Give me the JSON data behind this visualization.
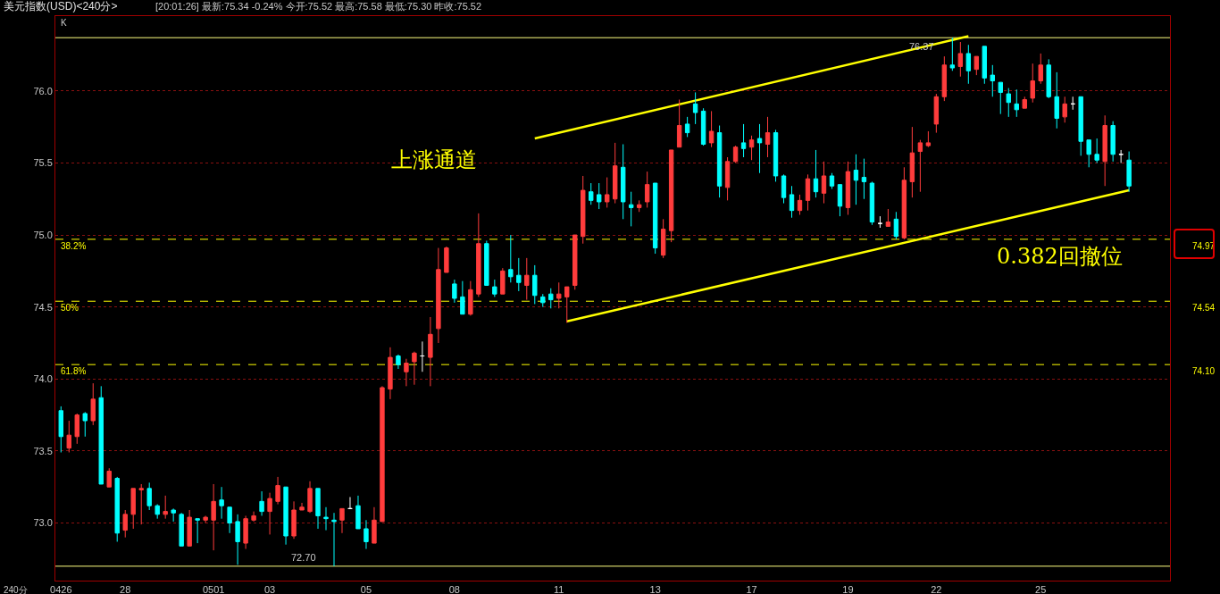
{
  "chart_data": {
    "type": "candlestick",
    "title": "美元指数(USD)<240分>",
    "subtitle": "[20:01:26] 最新:75.34 -0.24% 今开:75.52 最高:75.58 最低:75.30 昨收:75.52",
    "categories": [
      "0426",
      null,
      null,
      null,
      null,
      null,
      null,
      null,
      "28",
      null,
      null,
      null,
      null,
      null,
      null,
      null,
      null,
      null,
      null,
      "0501",
      null,
      null,
      null,
      null,
      null,
      null,
      "03",
      null,
      null,
      null,
      null,
      null,
      null,
      null,
      null,
      null,
      null,
      null,
      "05",
      null,
      null,
      null,
      null,
      null,
      null,
      null,
      null,
      null,
      null,
      "08",
      null,
      null,
      null,
      null,
      null,
      null,
      null,
      null,
      null,
      null,
      null,
      null,
      "11",
      null,
      null,
      null,
      null,
      null,
      null,
      null,
      null,
      null,
      null,
      null,
      "13",
      null,
      null,
      null,
      null,
      null,
      null,
      null,
      null,
      null,
      null,
      null,
      "17",
      null,
      null,
      null,
      null,
      null,
      null,
      null,
      null,
      null,
      null,
      null,
      "19",
      null,
      null,
      null,
      null,
      null,
      null,
      null,
      null,
      null,
      null,
      "22",
      null,
      null,
      null,
      null,
      null,
      null,
      null,
      null,
      null,
      null,
      null,
      null,
      "25",
      null,
      null,
      null,
      null,
      null,
      null,
      null,
      null,
      null,
      null,
      null
    ],
    "ohlc": [
      [
        73.78,
        73.81,
        73.49,
        73.6
      ],
      [
        73.52,
        73.71,
        73.49,
        73.61
      ],
      [
        73.6,
        73.76,
        73.55,
        73.75
      ],
      [
        73.76,
        73.77,
        73.6,
        73.71
      ],
      [
        73.71,
        73.97,
        73.68,
        73.86
      ],
      [
        73.87,
        73.95,
        73.27,
        73.27
      ],
      [
        73.25,
        73.38,
        73.25,
        73.36
      ],
      [
        73.31,
        73.32,
        72.87,
        72.93
      ],
      [
        72.95,
        73.09,
        72.9,
        73.06
      ],
      [
        73.06,
        73.24,
        72.96,
        73.24
      ],
      [
        73.23,
        73.27,
        72.99,
        73.24
      ],
      [
        73.24,
        73.28,
        73.09,
        73.12
      ],
      [
        73.12,
        73.13,
        73.03,
        73.06
      ],
      [
        73.06,
        73.19,
        73.03,
        73.08
      ],
      [
        73.09,
        73.1,
        73.01,
        73.07
      ],
      [
        73.06,
        73.07,
        72.84,
        72.84
      ],
      [
        72.84,
        73.09,
        72.84,
        73.04
      ],
      [
        73.03,
        73.03,
        72.86,
        73.02
      ],
      [
        73.02,
        73.05,
        73.0,
        73.04
      ],
      [
        73.02,
        73.27,
        72.81,
        73.15
      ],
      [
        73.16,
        73.25,
        73.03,
        73.12
      ],
      [
        73.11,
        73.11,
        72.93,
        73.0
      ],
      [
        73.01,
        73.06,
        72.71,
        72.87
      ],
      [
        72.86,
        73.05,
        72.82,
        73.03
      ],
      [
        73.02,
        73.08,
        73.01,
        73.05
      ],
      [
        73.15,
        73.22,
        73.05,
        73.08
      ],
      [
        73.08,
        73.21,
        72.92,
        73.17
      ],
      [
        73.15,
        73.32,
        73.13,
        73.26
      ],
      [
        73.25,
        73.25,
        72.85,
        72.91
      ],
      [
        72.91,
        73.15,
        72.89,
        73.09
      ],
      [
        73.09,
        73.14,
        73.09,
        73.11
      ],
      [
        73.08,
        73.29,
        73.07,
        73.24
      ],
      [
        73.24,
        73.24,
        72.96,
        73.05
      ],
      [
        73.04,
        73.11,
        72.95,
        73.03
      ],
      [
        73.02,
        73.07,
        72.7,
        73.01
      ],
      [
        73.02,
        73.1,
        72.93,
        73.1
      ],
      [
        73.1,
        73.18,
        73.1,
        73.1
      ],
      [
        73.12,
        73.19,
        72.96,
        72.96
      ],
      [
        72.96,
        73.02,
        72.82,
        72.87
      ],
      [
        72.86,
        73.11,
        72.86,
        73.02
      ],
      [
        73.01,
        73.95,
        73.01,
        73.94
      ],
      [
        73.93,
        74.22,
        73.86,
        74.15
      ],
      [
        74.16,
        74.17,
        74.07,
        74.1
      ],
      [
        74.05,
        74.14,
        73.95,
        74.11
      ],
      [
        74.12,
        74.19,
        73.96,
        74.18
      ],
      [
        74.16,
        74.26,
        74.05,
        74.16
      ],
      [
        74.15,
        74.43,
        73.95,
        74.31
      ],
      [
        74.35,
        74.91,
        74.25,
        74.76
      ],
      [
        74.74,
        74.92,
        74.74,
        74.91
      ],
      [
        74.66,
        74.69,
        74.53,
        74.56
      ],
      [
        74.57,
        74.68,
        74.45,
        74.45
      ],
      [
        74.45,
        74.68,
        74.44,
        74.62
      ],
      [
        74.59,
        75.15,
        74.57,
        74.94
      ],
      [
        74.94,
        74.96,
        74.65,
        74.65
      ],
      [
        74.64,
        74.69,
        74.57,
        74.59
      ],
      [
        74.59,
        74.77,
        74.59,
        74.75
      ],
      [
        74.76,
        75.0,
        74.67,
        74.71
      ],
      [
        74.72,
        74.84,
        74.61,
        74.67
      ],
      [
        74.65,
        74.84,
        74.55,
        74.72
      ],
      [
        74.72,
        74.79,
        74.52,
        74.58
      ],
      [
        74.57,
        74.59,
        74.5,
        74.53
      ],
      [
        74.59,
        74.63,
        74.49,
        74.55
      ],
      [
        74.56,
        74.67,
        74.49,
        74.59
      ],
      [
        74.57,
        74.64,
        74.39,
        74.64
      ],
      [
        74.65,
        75.0,
        74.62,
        75.0
      ],
      [
        74.99,
        75.41,
        74.94,
        75.31
      ],
      [
        75.3,
        75.36,
        75.21,
        75.24
      ],
      [
        75.28,
        75.36,
        75.18,
        75.23
      ],
      [
        75.23,
        75.4,
        75.19,
        75.28
      ],
      [
        75.25,
        75.64,
        75.22,
        75.48
      ],
      [
        75.47,
        75.63,
        75.11,
        75.23
      ],
      [
        75.21,
        75.3,
        75.06,
        75.19
      ],
      [
        75.19,
        75.24,
        75.16,
        75.21
      ],
      [
        75.23,
        75.44,
        75.19,
        75.35
      ],
      [
        75.36,
        75.36,
        74.87,
        74.91
      ],
      [
        74.86,
        75.11,
        74.84,
        75.04
      ],
      [
        75.03,
        75.59,
        74.95,
        75.59
      ],
      [
        75.61,
        75.94,
        75.61,
        75.76
      ],
      [
        75.77,
        75.82,
        75.68,
        75.71
      ],
      [
        75.91,
        75.99,
        75.77,
        75.85
      ],
      [
        75.86,
        75.88,
        75.62,
        75.63
      ],
      [
        75.64,
        75.86,
        75.61,
        75.72
      ],
      [
        75.71,
        75.76,
        75.26,
        75.34
      ],
      [
        75.33,
        75.54,
        75.24,
        75.51
      ],
      [
        75.51,
        75.62,
        75.5,
        75.61
      ],
      [
        75.64,
        75.77,
        75.54,
        75.6
      ],
      [
        75.61,
        75.69,
        75.52,
        75.66
      ],
      [
        75.67,
        75.77,
        75.43,
        75.64
      ],
      [
        75.63,
        75.82,
        75.54,
        75.71
      ],
      [
        75.71,
        75.73,
        75.37,
        75.41
      ],
      [
        75.41,
        75.42,
        75.22,
        75.26
      ],
      [
        75.28,
        75.34,
        75.12,
        75.17
      ],
      [
        75.17,
        75.28,
        75.14,
        75.24
      ],
      [
        75.24,
        75.42,
        75.17,
        75.39
      ],
      [
        75.39,
        75.59,
        75.26,
        75.3
      ],
      [
        75.29,
        75.51,
        75.22,
        75.41
      ],
      [
        75.41,
        75.43,
        75.32,
        75.34
      ],
      [
        75.35,
        75.35,
        75.13,
        75.2
      ],
      [
        75.19,
        75.51,
        75.14,
        75.44
      ],
      [
        75.45,
        75.56,
        75.21,
        75.38
      ],
      [
        75.4,
        75.53,
        75.25,
        75.37
      ],
      [
        75.36,
        75.37,
        75.07,
        75.09
      ],
      [
        75.08,
        75.13,
        75.05,
        75.08
      ],
      [
        75.06,
        75.18,
        75.06,
        75.09
      ],
      [
        75.11,
        75.16,
        74.97,
        74.99
      ],
      [
        74.98,
        75.47,
        74.97,
        75.38
      ],
      [
        75.37,
        75.75,
        75.26,
        75.57
      ],
      [
        75.58,
        75.66,
        75.3,
        75.64
      ],
      [
        75.62,
        75.72,
        75.61,
        75.64
      ],
      [
        75.77,
        75.98,
        75.71,
        75.96
      ],
      [
        75.96,
        76.24,
        75.93,
        76.18
      ],
      [
        76.18,
        76.37,
        76.14,
        76.16
      ],
      [
        76.17,
        76.34,
        76.1,
        76.26
      ],
      [
        76.26,
        76.32,
        76.05,
        76.14
      ],
      [
        76.15,
        76.24,
        76.11,
        76.24
      ],
      [
        76.31,
        76.31,
        76.05,
        76.09
      ],
      [
        76.11,
        76.18,
        75.96,
        76.07
      ],
      [
        76.06,
        76.06,
        75.84,
        75.99
      ],
      [
        75.98,
        76.02,
        75.82,
        75.92
      ],
      [
        75.91,
        76.01,
        75.82,
        75.87
      ],
      [
        75.88,
        75.96,
        75.88,
        75.94
      ],
      [
        75.95,
        76.19,
        75.92,
        76.07
      ],
      [
        76.07,
        76.26,
        76.05,
        76.18
      ],
      [
        76.18,
        76.22,
        75.95,
        75.96
      ],
      [
        75.96,
        76.13,
        75.74,
        75.81
      ],
      [
        75.82,
        75.96,
        75.78,
        75.91
      ],
      [
        75.91,
        75.96,
        75.87,
        75.91
      ],
      [
        75.96,
        75.96,
        75.55,
        75.65
      ],
      [
        75.66,
        75.66,
        75.47,
        75.56
      ],
      [
        75.56,
        75.67,
        75.5,
        75.52
      ],
      [
        75.51,
        75.83,
        75.34,
        75.76
      ],
      [
        75.76,
        75.79,
        75.51,
        75.56
      ],
      [
        75.56,
        75.59,
        75.5,
        75.56
      ],
      [
        75.52,
        75.58,
        75.3,
        75.34
      ]
    ],
    "colors": [
      "#00ffff",
      "#ff3c3c",
      "#ff3c3c",
      "#00ffff",
      "#ff3c3c",
      "#00ffff",
      "#ff3c3c",
      "#00ffff",
      "#ff3c3c",
      "#ff3c3c",
      "#ff3c3c",
      "#00ffff",
      "#00ffff",
      "#ff3c3c",
      "#00ffff",
      "#00ffff",
      "#ff3c3c",
      "#00ffff",
      "#ff3c3c",
      "#ff3c3c",
      "#00ffff",
      "#00ffff",
      "#00ffff",
      "#ff3c3c",
      "#ff3c3c",
      "#00ffff",
      "#ff3c3c",
      "#ff3c3c",
      "#00ffff",
      "#ff3c3c",
      "#ff3c3c",
      "#ff3c3c",
      "#00ffff",
      "#00ffff",
      "#00ffff",
      "#ff3c3c",
      "#ffffff",
      "#00ffff",
      "#00ffff",
      "#ff3c3c",
      "#ff3c3c",
      "#ff3c3c",
      "#00ffff",
      "#ff3c3c",
      "#ff3c3c",
      "#ffffff",
      "#ff3c3c",
      "#ff3c3c",
      "#ff3c3c",
      "#00ffff",
      "#00ffff",
      "#ff3c3c",
      "#ff3c3c",
      "#00ffff",
      "#00ffff",
      "#ff3c3c",
      "#00ffff",
      "#00ffff",
      "#ff3c3c",
      "#00ffff",
      "#00ffff",
      "#00ffff",
      "#ff3c3c",
      "#ff3c3c",
      "#ff3c3c",
      "#ff3c3c",
      "#00ffff",
      "#00ffff",
      "#ff3c3c",
      "#ff3c3c",
      "#00ffff",
      "#00ffff",
      "#ff3c3c",
      "#ff3c3c",
      "#00ffff",
      "#ff3c3c",
      "#ff3c3c",
      "#ff3c3c",
      "#00ffff",
      "#00ffff",
      "#00ffff",
      "#ff3c3c",
      "#00ffff",
      "#ff3c3c",
      "#ff3c3c",
      "#00ffff",
      "#ff3c3c",
      "#00ffff",
      "#ff3c3c",
      "#00ffff",
      "#00ffff",
      "#00ffff",
      "#ff3c3c",
      "#ff3c3c",
      "#00ffff",
      "#ff3c3c",
      "#00ffff",
      "#00ffff",
      "#ff3c3c",
      "#00ffff",
      "#00ffff",
      "#00ffff",
      "#ffffff",
      "#ff3c3c",
      "#00ffff",
      "#ff3c3c",
      "#ff3c3c",
      "#ff3c3c",
      "#ff3c3c",
      "#ff3c3c",
      "#ff3c3c",
      "#00ffff",
      "#ff3c3c",
      "#00ffff",
      "#ff3c3c",
      "#00ffff",
      "#00ffff",
      "#00ffff",
      "#00ffff",
      "#00ffff",
      "#ff3c3c",
      "#ff3c3c",
      "#ff3c3c",
      "#00ffff",
      "#00ffff",
      "#ff3c3c",
      "#ffffff",
      "#00ffff",
      "#00ffff",
      "#00ffff",
      "#ff3c3c",
      "#00ffff",
      "#ffffff",
      "#00ffff"
    ],
    "series": [
      {
        "type": "line",
        "values": [
          null,
          null,
          null,
          null,
          null,
          null,
          null,
          null,
          null,
          null,
          null,
          null,
          null,
          null,
          null,
          null,
          null,
          null,
          null,
          null,
          null,
          null,
          null,
          null,
          null,
          null,
          null,
          null,
          null,
          null,
          null,
          null,
          null,
          null,
          null,
          null,
          null,
          null,
          null,
          null,
          null,
          null,
          null,
          null,
          null,
          null,
          null,
          null,
          null,
          null,
          null,
          null,
          null,
          null,
          null,
          null,
          null,
          null,
          null,
          75.67,
          null,
          null,
          null,
          null,
          null,
          null,
          null,
          null,
          null,
          null,
          null,
          null,
          null,
          null,
          null,
          null,
          null,
          null,
          null,
          null,
          null,
          null,
          null,
          null,
          null,
          null,
          null,
          null,
          null,
          null,
          null,
          null,
          null,
          null,
          null,
          null,
          null,
          null,
          null,
          null,
          null,
          null,
          null,
          null,
          null,
          null,
          null,
          null,
          null,
          null,
          null,
          null,
          null,
          76.38,
          null,
          null,
          null,
          null,
          null,
          null,
          null,
          null,
          null,
          null,
          null,
          null,
          null,
          null,
          null,
          null,
          null,
          null,
          null,
          null
        ],
        "color": "#ffff00"
      },
      {
        "type": "line",
        "values": [
          null,
          null,
          null,
          null,
          null,
          null,
          null,
          null,
          null,
          null,
          null,
          null,
          null,
          null,
          null,
          null,
          null,
          null,
          null,
          null,
          null,
          null,
          null,
          null,
          null,
          null,
          null,
          null,
          null,
          null,
          null,
          null,
          null,
          null,
          null,
          null,
          null,
          null,
          null,
          null,
          null,
          null,
          null,
          null,
          null,
          null,
          null,
          null,
          null,
          null,
          null,
          null,
          null,
          null,
          null,
          null,
          null,
          null,
          null,
          null,
          null,
          null,
          null,
          74.4,
          null,
          null,
          null,
          null,
          null,
          null,
          null,
          null,
          null,
          null,
          null,
          null,
          null,
          null,
          null,
          null,
          null,
          null,
          null,
          null,
          null,
          null,
          null,
          null,
          null,
          null,
          null,
          null,
          null,
          null,
          null,
          null,
          null,
          null,
          null,
          null,
          null,
          null,
          null,
          null,
          null,
          null,
          null,
          null,
          null,
          null,
          null,
          null,
          null,
          null,
          null,
          null,
          null,
          null,
          null,
          null,
          null,
          null,
          null,
          null,
          null,
          null,
          null,
          null,
          null,
          null,
          null,
          null,
          null,
          75.31
        ],
        "color": "#ffff00"
      }
    ],
    "ylim": [
      72.6,
      76.52
    ],
    "yticks": [
      {
        "value": 73,
        "label": "73.0"
      },
      {
        "value": 73.5,
        "label": "73.5"
      },
      {
        "value": 74,
        "label": "74.0"
      },
      {
        "value": 74.5,
        "label": "74.5"
      },
      {
        "value": 75,
        "label": "75.0"
      },
      {
        "value": 75.5,
        "label": "75.5"
      },
      {
        "value": 76,
        "label": "76.0"
      }
    ],
    "grid": "y",
    "ref_lines": [
      {
        "axis": "y",
        "value": 74.97,
        "label": "74.97",
        "color": "#ffff00",
        "line_style": "dashed"
      },
      {
        "axis": "y",
        "value": 74.54,
        "label": "74.54",
        "color": "#ffff00",
        "line_style": "dashed"
      },
      {
        "axis": "y",
        "value": 74.1,
        "label": "74.10",
        "color": "#ffff00",
        "line_style": "dashed"
      },
      {
        "axis": "y",
        "value": 76.37,
        "color": "#ffff80",
        "line_style": "solid"
      },
      {
        "axis": "y",
        "value": 72.7,
        "color": "#ffff80",
        "line_style": "solid"
      }
    ],
    "annotations": [
      "K",
      "240分",
      "上涨通道",
      "0.382回撤位",
      {
        "text": "76.37",
        "y": 76.37
      },
      {
        "text": "72.70",
        "y": 72.7
      },
      {
        "text": "38.2%",
        "y": 74.97
      },
      {
        "text": "50%",
        "y": 74.54
      },
      {
        "text": "61.8%",
        "y": 74.1
      }
    ]
  }
}
